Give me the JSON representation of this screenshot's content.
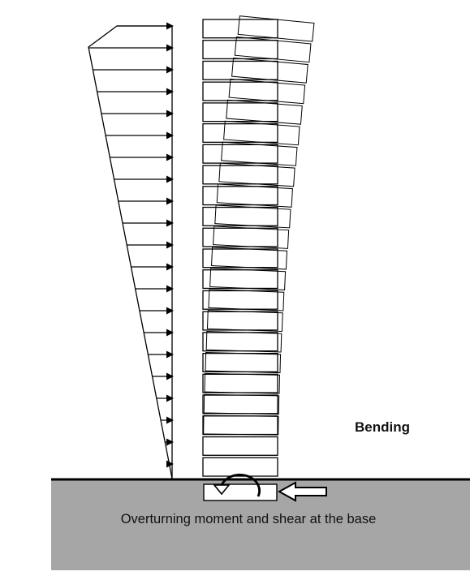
{
  "labels": {
    "bending": "Bending",
    "caption": "Overturning moment and shear at the base"
  },
  "colors": {
    "stroke": "#000000",
    "ground": "#a6a6a6",
    "background": "#ffffff",
    "text": "#111111"
  },
  "load_arrow_count": 21,
  "building_floor_count": 22,
  "icons": [
    "load-arrow-icon",
    "moment-arrow-icon",
    "shear-arrow-icon"
  ]
}
